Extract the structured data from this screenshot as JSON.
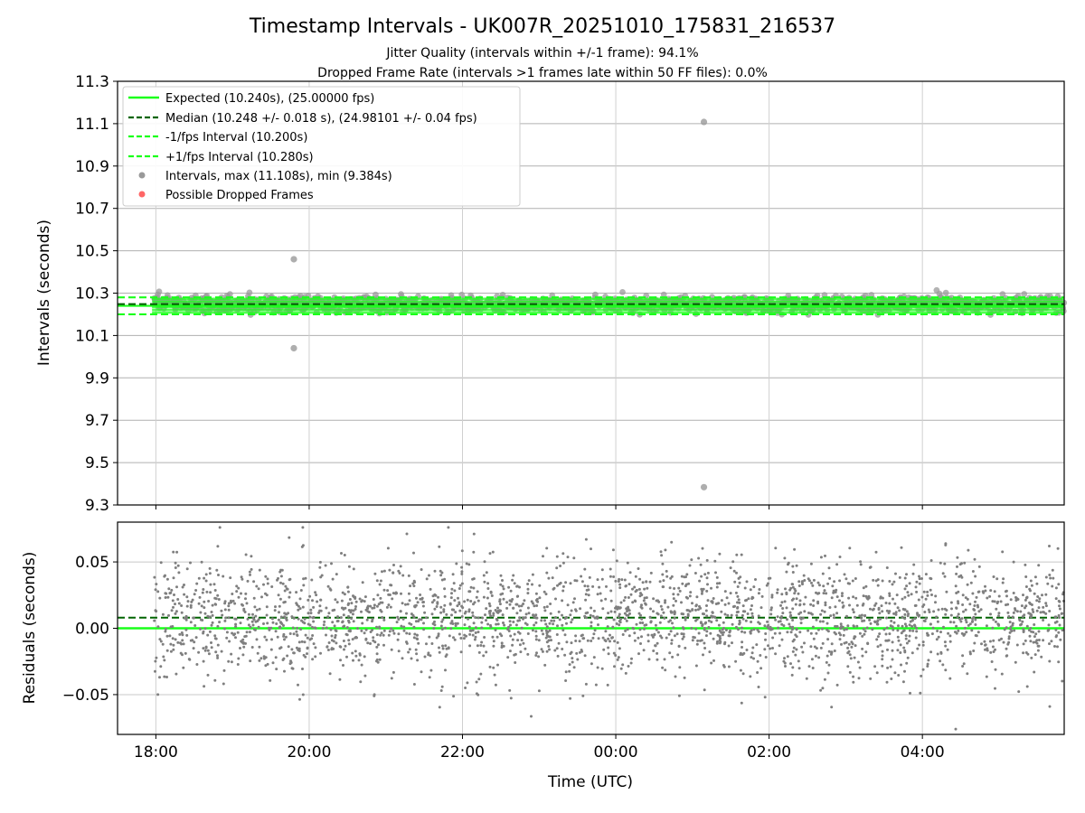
{
  "chart_data": [
    {
      "type": "scatter",
      "panel": "intervals",
      "title": "Timestamp Intervals - UK007R_20251010_175831_216537",
      "subtitle_lines": [
        "Jitter Quality (intervals within +/-1 frame): 94.1%",
        "Dropped Frame Rate (intervals >1 frames late within 50 FF files): 0.0%"
      ],
      "xlabel": "Time (UTC)",
      "ylabel": "Intervals (seconds)",
      "xlim_hours": [
        17.5,
        29.85
      ],
      "ylim": [
        9.3,
        11.3
      ],
      "yticks": [
        "11.3",
        "11.1",
        "10.9",
        "10.7",
        "10.5",
        "10.3",
        "10.1",
        "9.9",
        "9.7",
        "9.5",
        "9.3"
      ],
      "grid": true,
      "legend_position": "top-left",
      "reference_lines": [
        {
          "name": "Expected (10.240s), (25.00000 fps)",
          "value": 10.24,
          "color": "#1aff1a",
          "style": "solid"
        },
        {
          "name": "Median (10.248 +/- 0.018 s), (24.98101 +/- 0.04 fps)",
          "value": 10.248,
          "color": "#006400",
          "style": "dashed"
        },
        {
          "name": "-1/fps Interval (10.200s)",
          "value": 10.2,
          "color": "#1aff1a",
          "style": "dashed"
        },
        {
          "name": "+1/fps Interval (10.280s)",
          "value": 10.28,
          "color": "#1aff1a",
          "style": "dashed"
        }
      ],
      "series": [
        {
          "name": "Intervals, max (11.108s), min (9.384s)",
          "color": "#999999",
          "max": 11.108,
          "min": 9.384,
          "count": 4220
        },
        {
          "name": "Possible Dropped Frames",
          "color": "#ff6666",
          "count": 0
        }
      ],
      "outliers": [
        {
          "x_hours": 25.15,
          "y": 11.108
        },
        {
          "x_hours": 25.15,
          "y": 9.384
        },
        {
          "x_hours": 19.8,
          "y": 10.46
        },
        {
          "x_hours": 19.8,
          "y": 10.04
        }
      ],
      "data_range_hours": [
        17.98,
        29.85
      ]
    },
    {
      "type": "scatter",
      "panel": "residuals",
      "xlabel": "Time (UTC)",
      "ylabel": "Residuals (seconds)",
      "xlim_hours": [
        17.5,
        29.85
      ],
      "ylim": [
        -0.08,
        0.08
      ],
      "yticks": [
        "0.05",
        "0.00",
        "−0.05"
      ],
      "xticks": [
        "18:00",
        "20:00",
        "22:00",
        "00:00",
        "02:00",
        "04:00"
      ],
      "xtick_hours": [
        18,
        20,
        22,
        24,
        26,
        28
      ],
      "grid": true,
      "reference_lines": [
        {
          "name": "Expected",
          "value": 0.0,
          "color": "#1aff1a",
          "style": "solid"
        },
        {
          "name": "Median",
          "value": 0.008,
          "color": "#006400",
          "style": "dashed"
        }
      ],
      "series": [
        {
          "name": "Residuals",
          "color": "#7f7f7f",
          "std": 0.022,
          "count": 4220
        }
      ]
    }
  ]
}
